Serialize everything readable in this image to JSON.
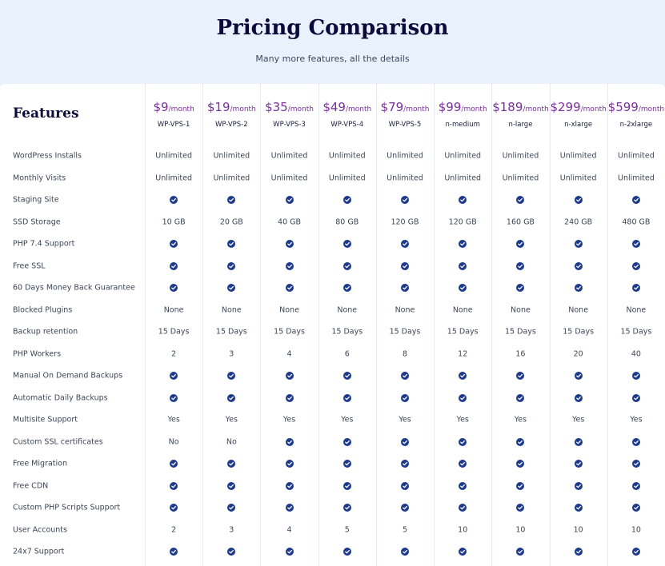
{
  "header": {
    "title": "Pricing Comparison",
    "subtitle": "Many more features, all the details"
  },
  "table": {
    "corner": "Features",
    "plans": [
      {
        "price": "$9",
        "period": "/month",
        "name": "WP-VPS-1"
      },
      {
        "price": "$19",
        "period": "/month",
        "name": "WP-VPS-2"
      },
      {
        "price": "$35",
        "period": "/month",
        "name": "WP-VPS-3"
      },
      {
        "price": "$49",
        "period": "/month",
        "name": "WP-VPS-4"
      },
      {
        "price": "$79",
        "period": "/month",
        "name": "WP-VPS-5"
      },
      {
        "price": "$99",
        "period": "/month",
        "name": "n-medium"
      },
      {
        "price": "$189",
        "period": "/month",
        "name": "n-large"
      },
      {
        "price": "$299",
        "period": "/month",
        "name": "n-xlarge"
      },
      {
        "price": "$599",
        "period": "/month",
        "name": "n-2xlarge"
      }
    ],
    "rows": [
      {
        "feature": "WordPress Installs",
        "cells": [
          "Unlimited",
          "Unlimited",
          "Unlimited",
          "Unlimited",
          "Unlimited",
          "Unlimited",
          "Unlimited",
          "Unlimited",
          "Unlimited"
        ]
      },
      {
        "feature": "Monthly Visits",
        "cells": [
          "Unlimited",
          "Unlimited",
          "Unlimited",
          "Unlimited",
          "Unlimited",
          "Unlimited",
          "Unlimited",
          "Unlimited",
          "Unlimited"
        ]
      },
      {
        "feature": "Staging Site",
        "cells": [
          true,
          true,
          true,
          true,
          true,
          true,
          true,
          true,
          true
        ]
      },
      {
        "feature": "SSD Storage",
        "cells": [
          "10 GB",
          "20 GB",
          "40 GB",
          "80 GB",
          "120 GB",
          "120 GB",
          "160 GB",
          "240 GB",
          "480 GB"
        ]
      },
      {
        "feature": "PHP 7.4 Support",
        "cells": [
          true,
          true,
          true,
          true,
          true,
          true,
          true,
          true,
          true
        ]
      },
      {
        "feature": "Free SSL",
        "cells": [
          true,
          true,
          true,
          true,
          true,
          true,
          true,
          true,
          true
        ]
      },
      {
        "feature": "60 Days Money Back Guarantee",
        "cells": [
          true,
          true,
          true,
          true,
          true,
          true,
          true,
          true,
          true
        ]
      },
      {
        "feature": "Blocked Plugins",
        "cells": [
          "None",
          "None",
          "None",
          "None",
          "None",
          "None",
          "None",
          "None",
          "None"
        ]
      },
      {
        "feature": "Backup retention",
        "cells": [
          "15 Days",
          "15 Days",
          "15 Days",
          "15 Days",
          "15 Days",
          "15 Days",
          "15 Days",
          "15 Days",
          "15 Days"
        ]
      },
      {
        "feature": "PHP Workers",
        "cells": [
          "2",
          "3",
          "4",
          "6",
          "8",
          "12",
          "16",
          "20",
          "40"
        ]
      },
      {
        "feature": "Manual On Demand Backups",
        "cells": [
          true,
          true,
          true,
          true,
          true,
          true,
          true,
          true,
          true
        ]
      },
      {
        "feature": "Automatic Daily Backups",
        "cells": [
          true,
          true,
          true,
          true,
          true,
          true,
          true,
          true,
          true
        ]
      },
      {
        "feature": "Multisite Support",
        "cells": [
          "Yes",
          "Yes",
          "Yes",
          "Yes",
          "Yes",
          "Yes",
          "Yes",
          "Yes",
          "Yes"
        ]
      },
      {
        "feature": "Custom SSL certificates",
        "cells": [
          "No",
          "No",
          true,
          true,
          true,
          true,
          true,
          true,
          true
        ]
      },
      {
        "feature": "Free Migration",
        "cells": [
          true,
          true,
          true,
          true,
          true,
          true,
          true,
          true,
          true
        ]
      },
      {
        "feature": "Free CDN",
        "cells": [
          true,
          true,
          true,
          true,
          true,
          true,
          true,
          true,
          true
        ]
      },
      {
        "feature": "Custom PHP Scripts Support",
        "cells": [
          true,
          true,
          true,
          true,
          true,
          true,
          true,
          true,
          true
        ]
      },
      {
        "feature": "User Accounts",
        "cells": [
          "2",
          "3",
          "4",
          "5",
          "5",
          "10",
          "10",
          "10",
          "10"
        ]
      },
      {
        "feature": "24x7 Support",
        "cells": [
          true,
          true,
          true,
          true,
          true,
          true,
          true,
          true,
          true
        ]
      }
    ]
  }
}
